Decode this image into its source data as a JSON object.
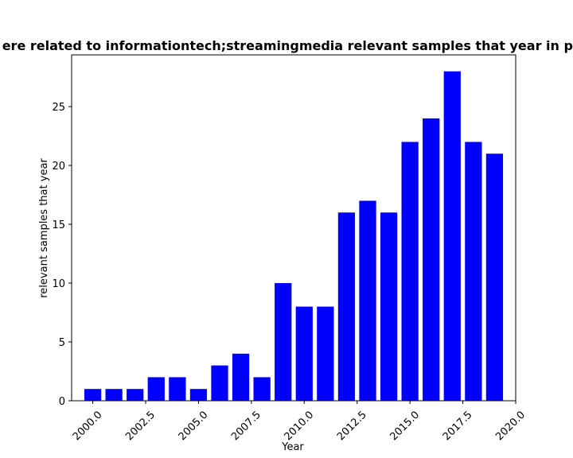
{
  "chart_data": {
    "type": "bar",
    "title": "ere related to informationtech;streamingmedia relevant samples that year in pri",
    "xlabel": "Year",
    "ylabel": "relevant samples that year",
    "x": [
      2000,
      2001,
      2002,
      2003,
      2004,
      2005,
      2006,
      2007,
      2008,
      2009,
      2010,
      2011,
      2012,
      2013,
      2014,
      2015,
      2016,
      2017,
      2018,
      2019
    ],
    "values": [
      1,
      1,
      1,
      2,
      2,
      1,
      3,
      4,
      2,
      10,
      8,
      8,
      16,
      17,
      16,
      22,
      24,
      28,
      22,
      21
    ],
    "xlim": [
      1999.0,
      2020.0
    ],
    "ylim": [
      0,
      29.4
    ],
    "xticks": [
      "2000.0",
      "2002.5",
      "2005.0",
      "2007.5",
      "2010.0",
      "2012.5",
      "2015.0",
      "2017.5",
      "2020.0"
    ],
    "xtick_values": [
      2000,
      2002.5,
      2005,
      2007.5,
      2010,
      2012.5,
      2015,
      2017.5,
      2020
    ],
    "yticks": [
      "0",
      "5",
      "10",
      "15",
      "20",
      "25"
    ],
    "ytick_values": [
      0,
      5,
      10,
      15,
      20,
      25
    ],
    "bar_color": "#0000ff",
    "grid": false
  }
}
